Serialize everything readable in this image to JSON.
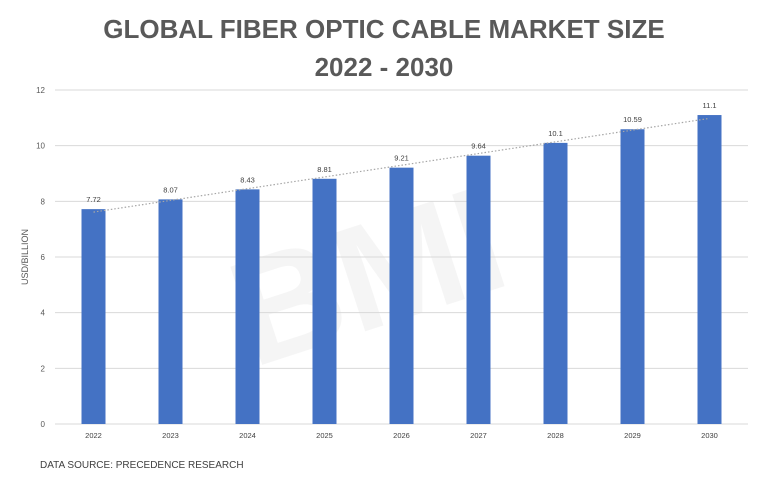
{
  "title_line1": "GLOBAL FIBER OPTIC CABLE MARKET SIZE",
  "title_line2": "2022 - 2030",
  "source": "DATA SOURCE: PRECEDENCE RESEARCH",
  "colors": {
    "bar": "#4472C4",
    "grid": "#D9D9D9",
    "text": "#595959",
    "trendline": "#A6A6A6"
  },
  "chart_data": {
    "type": "bar",
    "title": "GLOBAL FIBER OPTIC CABLE MARKET SIZE 2022 - 2030",
    "categories": [
      "2022",
      "2023",
      "2024",
      "2025",
      "2026",
      "2027",
      "2028",
      "2029",
      "2030"
    ],
    "values": [
      7.72,
      8.07,
      8.43,
      8.81,
      9.21,
      9.64,
      10.1,
      10.59,
      11.1
    ],
    "value_labels": [
      "7.72",
      "8.07",
      "8.43",
      "8.81",
      "9.21",
      "9.64",
      "10.1",
      "10.59",
      "11.1"
    ],
    "xlabel": "",
    "ylabel": "USD/BILLION",
    "ylim": [
      0,
      12
    ],
    "yticks": [
      "0",
      "2",
      "4",
      "6",
      "8",
      "10",
      "12"
    ],
    "grid": true,
    "trendline": "dotted linear",
    "legend": "none"
  }
}
